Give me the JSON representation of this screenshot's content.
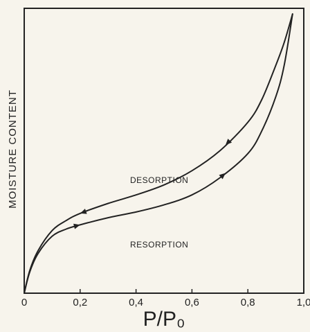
{
  "chart_data": {
    "type": "line",
    "title": "",
    "xlabel": "P/P₀",
    "ylabel": "MOISTURE CONTENT",
    "xlim": [
      0,
      1.0
    ],
    "ylim": [
      0,
      1.0
    ],
    "x_ticks": [
      "0",
      "0,2",
      "0,4",
      "0,6",
      "0,8",
      "1,0"
    ],
    "x_tick_values": [
      0,
      0.2,
      0.4,
      0.6,
      0.8,
      1.0
    ],
    "grid": false,
    "legend": "none",
    "series": [
      {
        "name": "DESORPTION",
        "direction": "decreasing P/P₀",
        "x": [
          0,
          0.02,
          0.05,
          0.1,
          0.15,
          0.2,
          0.3,
          0.4,
          0.5,
          0.6,
          0.7,
          0.8,
          0.85,
          0.9,
          0.93,
          0.96
        ],
        "y": [
          0,
          0.08,
          0.15,
          0.22,
          0.255,
          0.28,
          0.315,
          0.345,
          0.38,
          0.43,
          0.5,
          0.6,
          0.68,
          0.8,
          0.88,
          0.98
        ]
      },
      {
        "name": "RESORPTION",
        "direction": "increasing P/P₀",
        "x": [
          0,
          0.02,
          0.05,
          0.1,
          0.15,
          0.2,
          0.3,
          0.4,
          0.5,
          0.6,
          0.7,
          0.8,
          0.85,
          0.9,
          0.93,
          0.96
        ],
        "y": [
          0,
          0.075,
          0.14,
          0.2,
          0.225,
          0.24,
          0.265,
          0.285,
          0.31,
          0.345,
          0.405,
          0.49,
          0.57,
          0.69,
          0.8,
          0.98
        ]
      }
    ]
  },
  "colors": {
    "ink": "#222222",
    "paper": "#f7f4ec"
  }
}
